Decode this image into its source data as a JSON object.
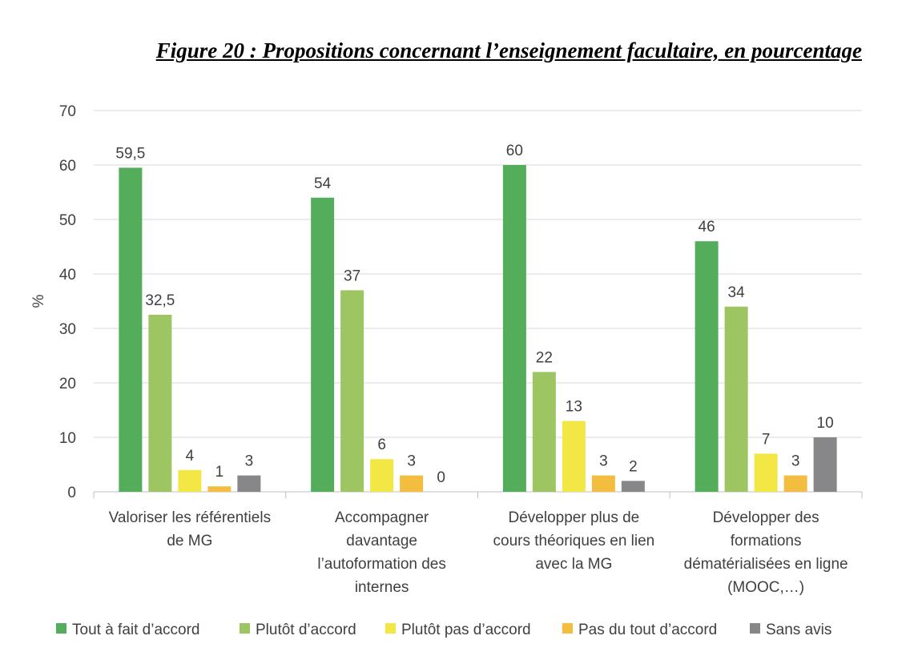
{
  "chart_data": {
    "type": "bar",
    "title": "Figure 20 : Propositions concernant l’enseignement facultaire, en pourcentage",
    "ylabel": "%",
    "ylim": [
      0,
      70
    ],
    "yticks": [
      0,
      10,
      20,
      30,
      40,
      50,
      60,
      70
    ],
    "grid": true,
    "legend_position": "bottom",
    "categories": [
      [
        "Valoriser les référentiels",
        "de MG"
      ],
      [
        "Accompagner",
        "davantage",
        "l’autoformation des",
        "internes"
      ],
      [
        "Développer plus de",
        "cours théoriques en lien",
        "avec la MG"
      ],
      [
        "Développer des",
        "formations",
        "dématérialisées en ligne",
        "(MOOC,…)"
      ]
    ],
    "series": [
      {
        "name": "Tout à fait d’accord",
        "color": "#53ad5b",
        "values": [
          59.5,
          54,
          60,
          46
        ],
        "labels": [
          "59,5",
          "54",
          "60",
          "46"
        ]
      },
      {
        "name": "Plutôt d’accord",
        "color": "#9dc663",
        "values": [
          32.5,
          37,
          22,
          34
        ],
        "labels": [
          "32,5",
          "37",
          "22",
          "34"
        ]
      },
      {
        "name": "Plutôt pas d’accord",
        "color": "#f2e745",
        "values": [
          4,
          6,
          13,
          7
        ],
        "labels": [
          "4",
          "6",
          "13",
          "7"
        ]
      },
      {
        "name": "Pas du tout d’accord",
        "color": "#f3bd3f",
        "values": [
          1,
          3,
          3,
          3
        ],
        "labels": [
          "1",
          "3",
          "3",
          "3"
        ]
      },
      {
        "name": "Sans avis",
        "color": "#87878a",
        "values": [
          3,
          0,
          2,
          10
        ],
        "labels": [
          "3",
          "0",
          "2",
          "10"
        ]
      }
    ]
  }
}
